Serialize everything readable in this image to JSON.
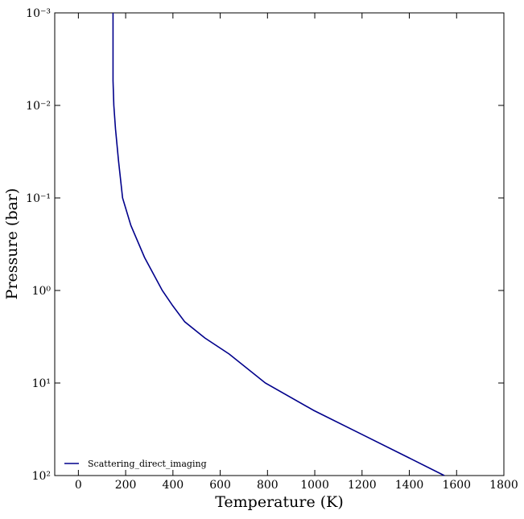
{
  "chart_data": {
    "type": "line",
    "xlabel": "Temperature (K)",
    "ylabel": "Pressure (bar)",
    "xlim": [
      -100,
      1800
    ],
    "xticks": [
      0,
      200,
      400,
      600,
      800,
      1000,
      1200,
      1400,
      1600,
      1800
    ],
    "ylim": [
      0.001,
      100
    ],
    "ylog": true,
    "y_inverted": true,
    "yticks": [
      {
        "value": 0.001,
        "label": "10⁻³"
      },
      {
        "value": 0.01,
        "label": "10⁻²"
      },
      {
        "value": 0.1,
        "label": "10⁻¹"
      },
      {
        "value": 1,
        "label": "10⁰"
      },
      {
        "value": 10,
        "label": "10¹"
      },
      {
        "value": 100,
        "label": "10²"
      }
    ],
    "legend": "lower left",
    "series": [
      {
        "name": "Scattering_direct_imaging",
        "color": "#00008b",
        "x": [
          146.6,
          146.6,
          150,
          157,
          170,
          187,
          222,
          280,
          355,
          399,
          450,
          535,
          638,
          791,
          996,
          1200,
          1405,
          1548
        ],
        "values": [
          0.001,
          0.0054,
          0.01,
          0.0179,
          0.04,
          0.1,
          0.198,
          0.44,
          1,
          1.46,
          2.18,
          3.26,
          4.86,
          10,
          19.8,
          36,
          65.6,
          100
        ]
      }
    ]
  }
}
